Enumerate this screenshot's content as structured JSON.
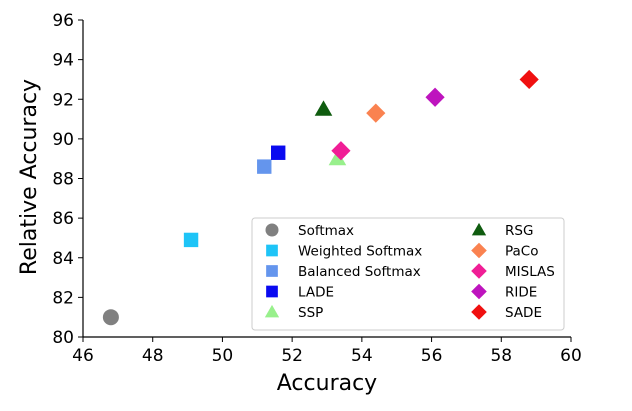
{
  "chart_data": {
    "type": "scatter",
    "title": "",
    "xlabel": "Accuracy",
    "ylabel": "Relative Accuracy",
    "xlim": [
      46,
      60
    ],
    "ylim": [
      80,
      96
    ],
    "xticks": [
      "46",
      "48",
      "50",
      "52",
      "54",
      "56",
      "58",
      "60"
    ],
    "yticks": [
      "80",
      "82",
      "84",
      "86",
      "88",
      "90",
      "92",
      "94",
      "96"
    ],
    "grid": false,
    "legend_placement": "lower-right",
    "series": [
      {
        "name": "Softmax",
        "marker": "circle",
        "color": "#808080",
        "x": 46.8,
        "y": 81.0
      },
      {
        "name": "Weighted Softmax",
        "marker": "square",
        "color": "#1ec4f7",
        "x": 49.1,
        "y": 84.9
      },
      {
        "name": "Balanced Softmax",
        "marker": "square",
        "color": "#6495ed",
        "x": 51.2,
        "y": 88.6
      },
      {
        "name": "LADE",
        "marker": "square",
        "color": "#0a0af0",
        "x": 51.6,
        "y": 89.3
      },
      {
        "name": "SSP",
        "marker": "triangle",
        "color": "#98f08c",
        "x": 53.3,
        "y": 89.0
      },
      {
        "name": "RSG",
        "marker": "triangle",
        "color": "#0f5c0f",
        "x": 52.9,
        "y": 91.5
      },
      {
        "name": "PaCo",
        "marker": "diamond",
        "color": "#fa8250",
        "x": 54.4,
        "y": 91.3
      },
      {
        "name": "MISLAS",
        "marker": "diamond",
        "color": "#f01e96",
        "x": 53.4,
        "y": 89.4
      },
      {
        "name": "RIDE",
        "marker": "diamond",
        "color": "#be14be",
        "x": 56.1,
        "y": 92.1
      },
      {
        "name": "SADE",
        "marker": "diamond",
        "color": "#f01010",
        "x": 58.8,
        "y": 93.0
      }
    ]
  }
}
